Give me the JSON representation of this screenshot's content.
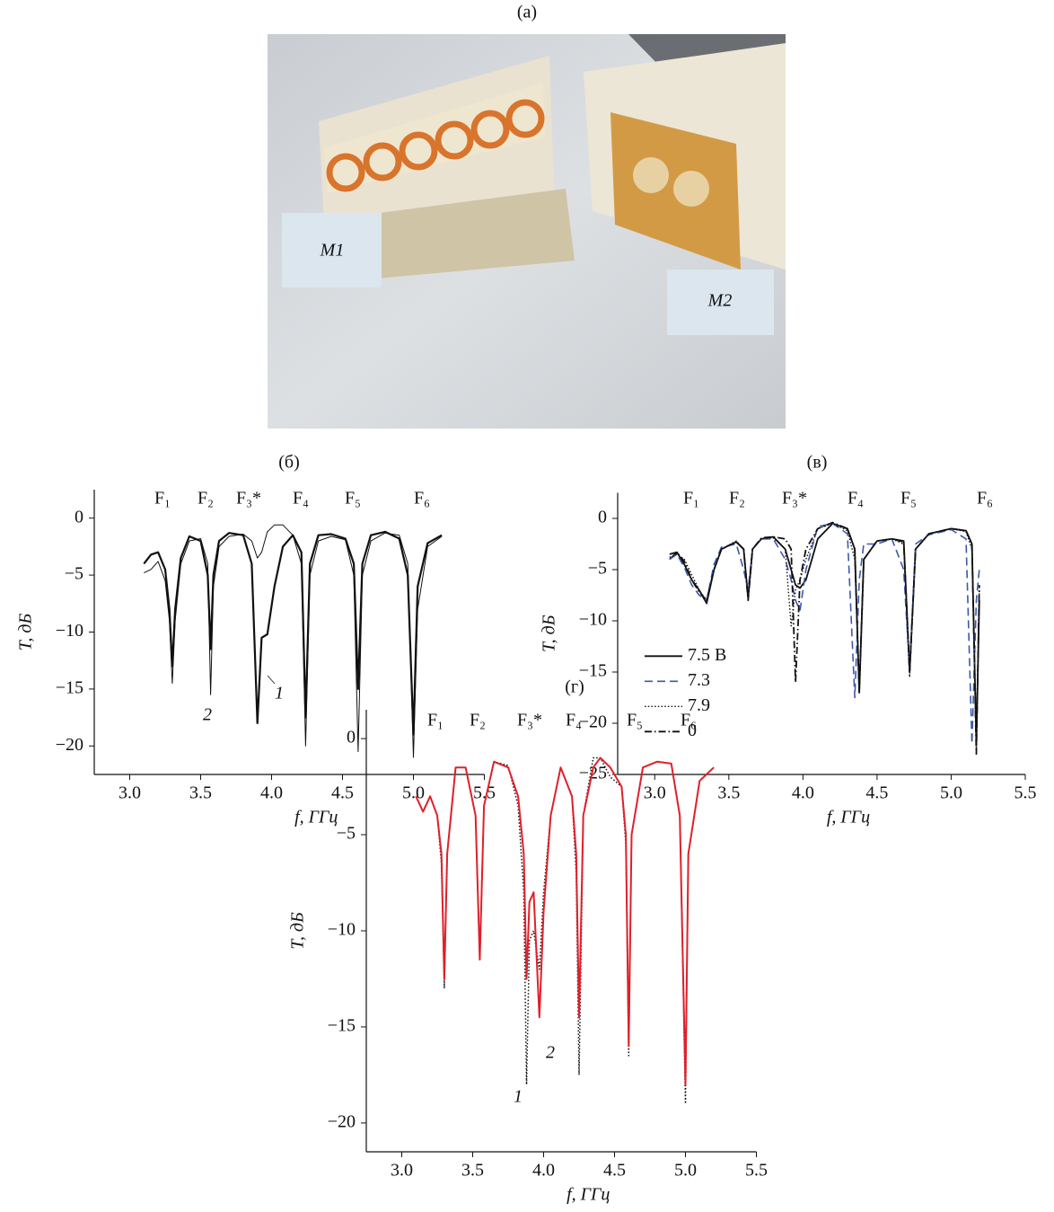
{
  "photo": {
    "caption": "(а)",
    "labels": [
      "M1",
      "M2"
    ]
  },
  "chart_data": [
    {
      "type": "line",
      "title": "(б)",
      "x_label": "f, ГГц",
      "y_label": "T, дБ",
      "peak_labels": [
        "F₁",
        "F₂",
        "F₃*",
        "F₄",
        "F₅",
        "F₆"
      ],
      "xlim": [
        2.75,
        5.5
      ],
      "ylim": [
        -22.5,
        2.5
      ],
      "xticks": [
        {
          "value": 3,
          "label": "3.0"
        },
        3.5,
        {
          "value": 4,
          "label": "4.0"
        },
        4.5,
        {
          "value": 5,
          "label": "5.0"
        },
        5.5
      ],
      "yticks": [
        {
          "value": 0,
          "label": "0"
        },
        {
          "value": -5,
          "label": "−5"
        },
        {
          "value": -10,
          "label": "−10"
        },
        {
          "value": -15,
          "label": "−15"
        },
        {
          "value": -20,
          "label": "−20"
        }
      ],
      "x": [
        3.1,
        3.15,
        3.2,
        3.25,
        3.28,
        3.3,
        3.32,
        3.36,
        3.42,
        3.5,
        3.55,
        3.57,
        3.59,
        3.63,
        3.7,
        3.8,
        3.86,
        3.9,
        3.93,
        3.97,
        4.02,
        4.08,
        4.15,
        4.21,
        4.24,
        4.27,
        4.33,
        4.42,
        4.52,
        4.58,
        4.61,
        4.64,
        4.7,
        4.8,
        4.9,
        4.96,
        5.0,
        5.03,
        5.1,
        5.2
      ],
      "series": [
        {
          "name": "1",
          "color": "#111111",
          "dash": "solid",
          "values": [
            -4,
            -3.2,
            -3,
            -4.5,
            -8,
            -13,
            -8,
            -3.5,
            -1.6,
            -2,
            -5,
            -11.5,
            -5,
            -2,
            -1.3,
            -1.5,
            -4,
            -18,
            -10.5,
            -10.2,
            -6,
            -2.5,
            -1.5,
            -3,
            -17.5,
            -4,
            -1.5,
            -1.4,
            -1.8,
            -4,
            -15,
            -4,
            -1.5,
            -1.2,
            -1.8,
            -5,
            -19,
            -6,
            -2.2,
            -1.5
          ]
        },
        {
          "name": "2",
          "color": "#111111",
          "dash": "solid",
          "values": [
            -4.8,
            -4.5,
            -3.8,
            -5.5,
            -9,
            -14.5,
            -9,
            -4,
            -2,
            -1.8,
            -4,
            -15.5,
            -6,
            -2.5,
            -1.6,
            -1.4,
            -2,
            -3.5,
            -3,
            -1.2,
            -0.6,
            -0.6,
            -1.5,
            -4,
            -20,
            -5,
            -2,
            -1.6,
            -1.9,
            -5,
            -20.5,
            -5,
            -2,
            -1.3,
            -1.5,
            -4,
            -21,
            -8,
            -2.5,
            -1.6
          ]
        }
      ]
    },
    {
      "type": "line",
      "title": "(в)",
      "x_label": "f, ГГц",
      "y_label": "T, дБ",
      "peak_labels": [
        "F₁",
        "F₂",
        "F₃*",
        "F₄",
        "F₅",
        "F₆"
      ],
      "legend": "center left",
      "xlim": [
        2.75,
        5.5
      ],
      "ylim": [
        -25,
        2.5
      ],
      "xticks": [
        {
          "value": 3,
          "label": "3.0"
        },
        3.5,
        {
          "value": 4,
          "label": "4.0"
        },
        4.5,
        {
          "value": 5,
          "label": "5.0"
        },
        5.5
      ],
      "yticks": [
        {
          "value": 0,
          "label": "0"
        },
        {
          "value": -5,
          "label": "−5"
        },
        {
          "value": -10,
          "label": "−10"
        },
        {
          "value": -15,
          "label": "−15"
        },
        {
          "value": -20,
          "label": "−20"
        },
        {
          "value": -25,
          "label": "−25"
        }
      ],
      "x": [
        3.1,
        3.15,
        3.2,
        3.25,
        3.3,
        3.35,
        3.4,
        3.45,
        3.55,
        3.6,
        3.63,
        3.66,
        3.72,
        3.8,
        3.88,
        3.92,
        3.95,
        3.98,
        4.02,
        4.1,
        4.2,
        4.3,
        4.35,
        4.38,
        4.41,
        4.5,
        4.6,
        4.68,
        4.72,
        4.76,
        4.85,
        5.0,
        5.1,
        5.14,
        5.17,
        5.19
      ],
      "series": [
        {
          "name": "7.5 В",
          "color": "#111111",
          "dash": "solid",
          "values": [
            -4,
            -3.3,
            -4.5,
            -6,
            -7,
            -8.3,
            -5,
            -3,
            -2.3,
            -3,
            -7.8,
            -3,
            -2,
            -1.8,
            -3,
            -5,
            -6.5,
            -6.8,
            -6,
            -2,
            -0.5,
            -1,
            -3,
            -17,
            -4,
            -2.2,
            -2,
            -2.2,
            -15,
            -3,
            -1.5,
            -1,
            -1.2,
            -2.5,
            -22,
            -8
          ]
        },
        {
          "name": "7.3",
          "color": "#3a5aa8",
          "dash": "dashed",
          "values": [
            -4,
            -3.5,
            -4.8,
            -6.5,
            -7.5,
            -8,
            -4.5,
            -2.8,
            -2.5,
            -5,
            -7,
            -3,
            -2,
            -2,
            -4,
            -6,
            -8,
            -9,
            -5,
            -0.8,
            -0.5,
            -1.5,
            -17.5,
            -6,
            -2.5,
            -2.5,
            -2,
            -5,
            -15,
            -2.5,
            -1.6,
            -1.1,
            -2,
            -22,
            -8,
            -5
          ]
        },
        {
          "name": "7.9",
          "color": "#111111",
          "dash": "dotted",
          "values": [
            -3.8,
            -3.5,
            -4,
            -5.5,
            -7,
            -8,
            -5,
            -3,
            -2.2,
            -3,
            -7.5,
            -3,
            -2,
            -1.9,
            -3,
            -10.5,
            -7,
            -6,
            -4,
            -1,
            -0.5,
            -1.2,
            -4,
            -17,
            -4,
            -2.2,
            -2,
            -2.5,
            -15.5,
            -3,
            -1.5,
            -1,
            -1.3,
            -3,
            -22.5,
            -7
          ]
        },
        {
          "name": "0",
          "color": "#111111",
          "dash": "dashdot",
          "values": [
            -3.5,
            -3.3,
            -4.2,
            -6,
            -7.2,
            -8,
            -5,
            -3,
            -2.3,
            -3,
            -8,
            -3,
            -1.9,
            -1.8,
            -2,
            -3,
            -16,
            -6,
            -3,
            -1,
            -0.4,
            -1,
            -3,
            -17,
            -4,
            -2.2,
            -2,
            -2.3,
            -15,
            -3,
            -1.5,
            -1,
            -1.2,
            -2.5,
            -23,
            -6.5
          ]
        }
      ]
    },
    {
      "type": "line",
      "title": "(г)",
      "x_label": "f, ГГц",
      "y_label": "T, дБ",
      "peak_labels": [
        "F₁",
        "F₂",
        "F₃*",
        "F₄",
        "F₅",
        "F₆"
      ],
      "xlim": [
        2.75,
        5.5
      ],
      "ylim": [
        -21.5,
        1.5
      ],
      "xticks": [
        {
          "value": 3,
          "label": "3.0"
        },
        3.5,
        {
          "value": 4,
          "label": "4.0"
        },
        4.5,
        {
          "value": 5,
          "label": "5.0"
        },
        5.5
      ],
      "yticks": [
        {
          "value": 0,
          "label": "0"
        },
        {
          "value": -5,
          "label": "−5"
        },
        {
          "value": -10,
          "label": "−10"
        },
        {
          "value": -15,
          "label": "−15"
        },
        {
          "value": -20,
          "label": "−20"
        }
      ],
      "x": [
        3.1,
        3.15,
        3.2,
        3.25,
        3.28,
        3.3,
        3.32,
        3.38,
        3.45,
        3.52,
        3.55,
        3.58,
        3.65,
        3.75,
        3.82,
        3.86,
        3.88,
        3.9,
        3.93,
        3.97,
        4.0,
        4.05,
        4.12,
        4.2,
        4.23,
        4.25,
        4.28,
        4.35,
        4.4,
        4.47,
        4.55,
        4.58,
        4.6,
        4.62,
        4.7,
        4.8,
        4.9,
        4.96,
        5.0,
        5.02,
        5.1,
        5.2
      ],
      "series": [
        {
          "name": "1",
          "color": "#111111",
          "dash": "dotted",
          "values": [
            -3,
            -3.8,
            -3,
            -4,
            -6.5,
            -13,
            -6,
            -1.5,
            -1.5,
            -4,
            -11.5,
            -3.5,
            -1.2,
            -1.4,
            -3.5,
            -8,
            -18,
            -10.5,
            -10,
            -12,
            -8,
            -4,
            -1.5,
            -3,
            -7,
            -17.5,
            -4,
            -1,
            -1,
            -2,
            -2.5,
            -5.5,
            -16.5,
            -5,
            -1.5,
            -1.2,
            -1.3,
            -4,
            -19,
            -6,
            -2.2,
            -1.5
          ]
        },
        {
          "name": "2",
          "color": "#e0202a",
          "dash": "solid",
          "values": [
            -3,
            -3.8,
            -3,
            -4,
            -6,
            -12.5,
            -6,
            -1.5,
            -1.5,
            -4,
            -11.5,
            -3.5,
            -1.2,
            -1.5,
            -3,
            -6,
            -12.5,
            -8.5,
            -8,
            -14.5,
            -9,
            -4,
            -1.5,
            -3,
            -6,
            -14.5,
            -4,
            -1.5,
            -1,
            -1.5,
            -2.5,
            -5,
            -16,
            -5,
            -1.5,
            -1.2,
            -1.3,
            -4,
            -18,
            -6,
            -2.2,
            -1.5
          ]
        }
      ]
    }
  ]
}
